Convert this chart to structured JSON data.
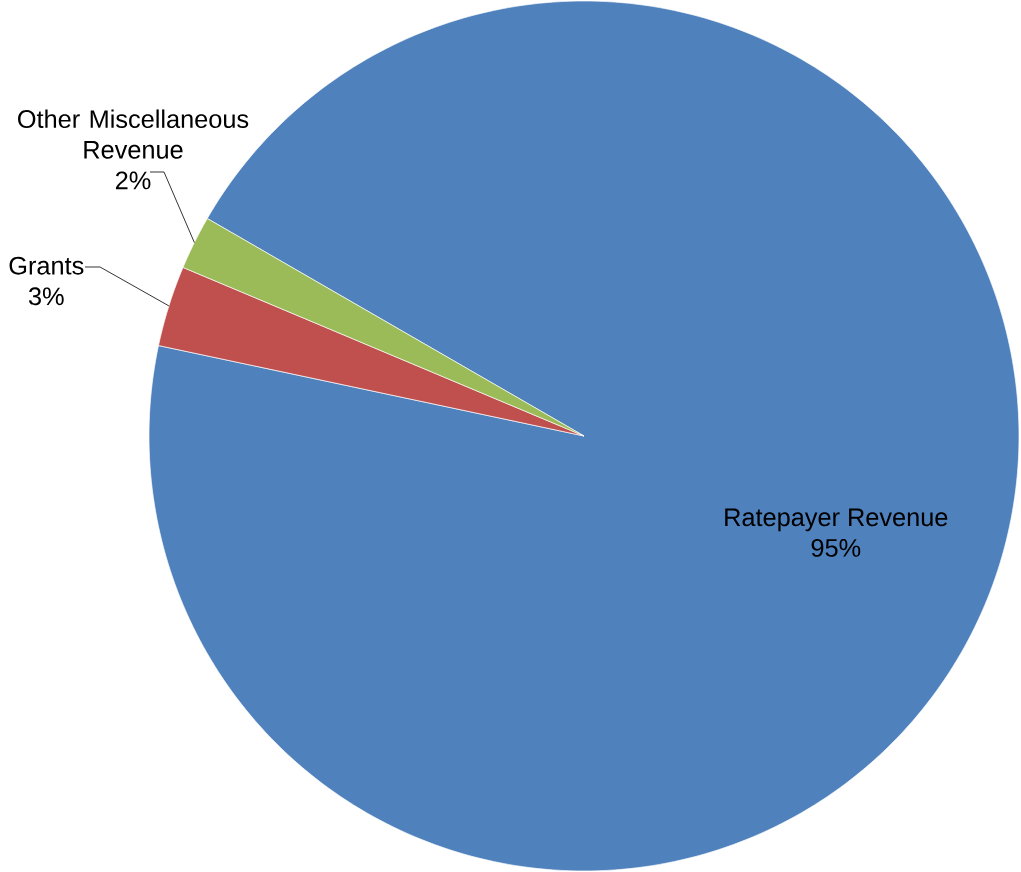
{
  "chart_data": {
    "type": "pie",
    "categories": [
      "Ratepayer Revenue",
      "Grants",
      "Other Miscellaneous Revenue"
    ],
    "values": [
      95,
      3,
      2
    ],
    "colors": [
      "#4f81bd",
      "#c0504d",
      "#9bbb59"
    ],
    "value_labels": [
      "95%",
      "3%",
      "2%"
    ]
  }
}
